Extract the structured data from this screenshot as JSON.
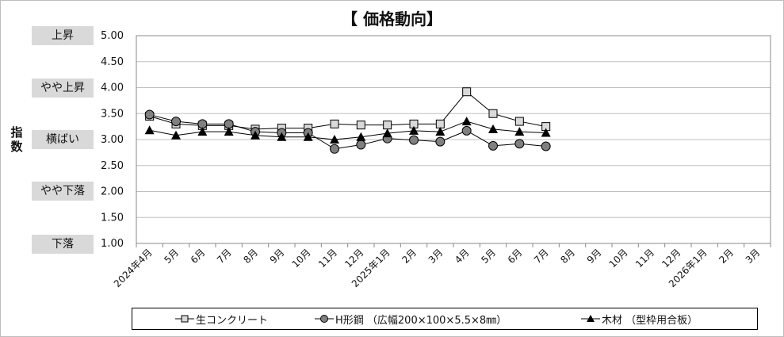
{
  "title": "【 価格動向】",
  "y_axis_title": "指数",
  "side_labels": [
    {
      "text": "上昇",
      "value": 5.0
    },
    {
      "text": "やや上昇",
      "value": 4.0
    },
    {
      "text": "横ばい",
      "value": 3.0
    },
    {
      "text": "やや下落",
      "value": 2.0
    },
    {
      "text": "下落",
      "value": 1.0
    }
  ],
  "chart_data": {
    "type": "line",
    "title": "【 価格動向】",
    "ylabel": "指数",
    "ylim": [
      1.0,
      5.0
    ],
    "yticks": [
      "5.00",
      "4.50",
      "4.00",
      "3.50",
      "3.00",
      "2.50",
      "2.00",
      "1.50",
      "1.00"
    ],
    "grid": true,
    "legend_position": "bottom",
    "categories": [
      "2024年4月",
      "5月",
      "6月",
      "7月",
      "8月",
      "9月",
      "10月",
      "11月",
      "12月",
      "2025年1月",
      "2月",
      "3月",
      "4月",
      "5月",
      "6月",
      "7月",
      "8月",
      "9月",
      "10月",
      "11月",
      "12月",
      "2026年1月",
      "2月",
      "3月"
    ],
    "series": [
      {
        "name": "生コンクリート",
        "marker": "square",
        "values": [
          3.45,
          3.3,
          3.27,
          3.27,
          3.2,
          3.22,
          3.22,
          3.3,
          3.28,
          3.28,
          3.3,
          3.3,
          3.92,
          3.5,
          3.35,
          3.25,
          null,
          null,
          null,
          null,
          null,
          null,
          null,
          null
        ]
      },
      {
        "name": "H形鋼 （広幅200×100×5.5×8㎜）",
        "marker": "circle",
        "values": [
          3.48,
          3.35,
          3.3,
          3.3,
          3.15,
          3.13,
          3.13,
          2.82,
          2.9,
          3.02,
          2.99,
          2.96,
          3.17,
          2.88,
          2.92,
          2.87,
          null,
          null,
          null,
          null,
          null,
          null,
          null,
          null
        ]
      },
      {
        "name": "木材 （型枠用合板）",
        "marker": "triangle",
        "values": [
          3.18,
          3.08,
          3.15,
          3.15,
          3.08,
          3.05,
          3.05,
          3.0,
          3.05,
          3.12,
          3.17,
          3.15,
          3.35,
          3.2,
          3.15,
          3.13,
          null,
          null,
          null,
          null,
          null,
          null,
          null,
          null
        ]
      }
    ]
  },
  "colors": {
    "square_fill": "#d9d9d9",
    "circle_fill": "#808080",
    "triangle_fill": "#000000",
    "gridline": "#c0c0c0",
    "side_box": "#d9d9d9"
  }
}
